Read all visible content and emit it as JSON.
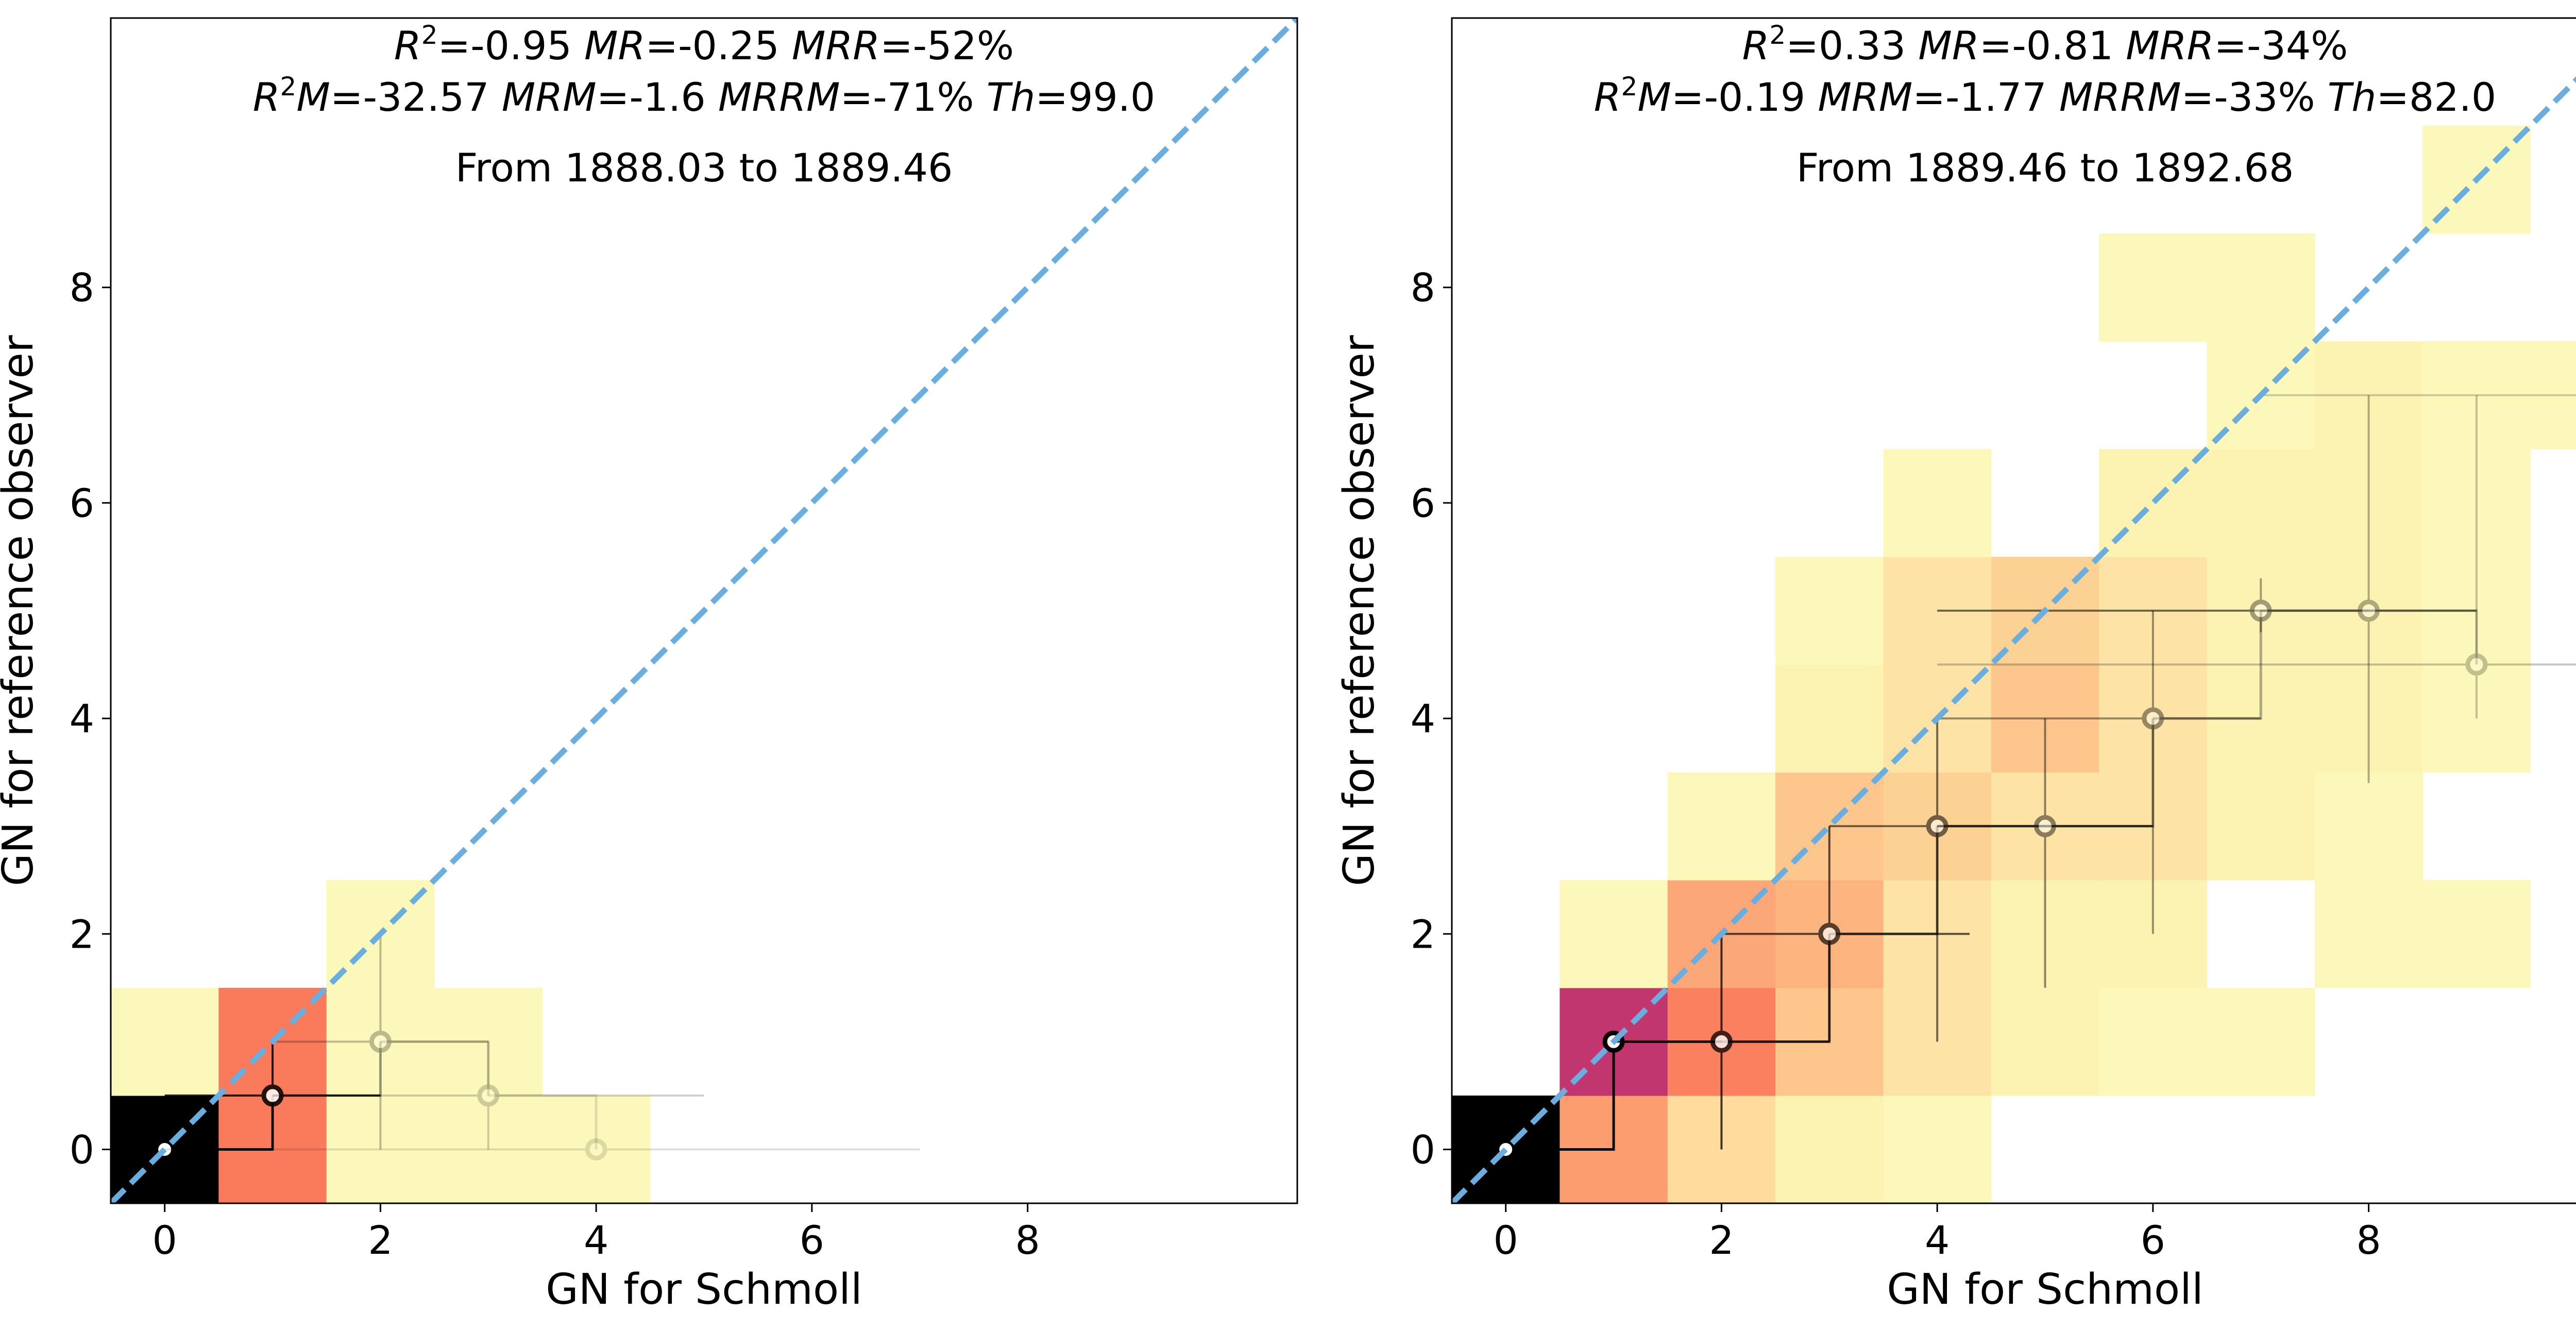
{
  "chart_data": [
    {
      "type": "heatmap",
      "title_line1": {
        "R2": "-0.95",
        "MR": "-0.25",
        "MRR": "-52%"
      },
      "title_line2": {
        "R2M": "-32.57",
        "MRM": "-1.6",
        "MRRM": "-71%",
        "Th": "99.0"
      },
      "range_text": "From 1888.03  to 1889.46",
      "xlabel": "GN for Schmoll",
      "ylabel": "GN for reference observer",
      "xlim": [
        -0.5,
        10.5
      ],
      "ylim": [
        -0.5,
        10.5
      ],
      "xticks": [
        "0",
        "2",
        "4",
        "6",
        "8"
      ],
      "yticks": [
        "0",
        "2",
        "4",
        "6",
        "8"
      ],
      "reference_line": "y = x (dashed, light blue)",
      "colors": {
        "reference_line": "#6aaee0"
      },
      "cells": [
        {
          "x": 0,
          "y": 0,
          "color": "#000000"
        },
        {
          "x": 1,
          "y": 0,
          "color": "#fa7b5c"
        },
        {
          "x": 2,
          "y": 0,
          "color": "#fcf8ba"
        },
        {
          "x": 3,
          "y": 0,
          "color": "#fcf8ba"
        },
        {
          "x": 4,
          "y": 0,
          "color": "#fcf8ba"
        },
        {
          "x": 0,
          "y": 1,
          "color": "#fcf8ba"
        },
        {
          "x": 1,
          "y": 1,
          "color": "#fa7b5c"
        },
        {
          "x": 2,
          "y": 1,
          "color": "#fcf8ba"
        },
        {
          "x": 3,
          "y": 1,
          "color": "#fcf8ba"
        },
        {
          "x": 2,
          "y": 2,
          "color": "#fcf8ba"
        }
      ],
      "median_points": [
        {
          "x": 0,
          "y": 0,
          "x_err": [
            0,
            1
          ],
          "y_err": [
            0,
            0
          ],
          "alpha": 1.0
        },
        {
          "x": 1,
          "y": 0.5,
          "x_err": [
            0,
            2
          ],
          "y_err": [
            0,
            1
          ],
          "alpha": 0.85
        },
        {
          "x": 2,
          "y": 1,
          "x_err": [
            1,
            3
          ],
          "y_err": [
            0,
            2
          ],
          "alpha": 0.25
        },
        {
          "x": 3,
          "y": 0.5,
          "x_err": [
            1,
            5
          ],
          "y_err": [
            0,
            1
          ],
          "alpha": 0.18
        },
        {
          "x": 4,
          "y": 0,
          "x_err": [
            0,
            7
          ],
          "y_err": [
            0,
            0
          ],
          "alpha": 0.12
        }
      ]
    },
    {
      "type": "heatmap",
      "title_line1": {
        "R2": "0.33",
        "MR": "-0.81",
        "MRR": "-34%"
      },
      "title_line2": {
        "R2M": "-0.19",
        "MRM": "-1.77",
        "MRRM": "-33%",
        "Th": "82.0"
      },
      "range_text": "From 1889.46  to 1892.68",
      "xlabel": "GN for Schmoll",
      "ylabel": "GN for reference observer",
      "xlim": [
        -0.5,
        10.5
      ],
      "ylim": [
        -0.5,
        10.5
      ],
      "xticks": [
        "0",
        "2",
        "4",
        "6",
        "8"
      ],
      "yticks": [
        "0",
        "2",
        "4",
        "6",
        "8"
      ],
      "reference_line": "y = x (dashed, light blue)",
      "colors": {
        "reference_line": "#6aaee0"
      },
      "cells": [
        {
          "x": 0,
          "y": 0,
          "color": "#000000"
        },
        {
          "x": 1,
          "y": 0,
          "color": "#fb9d6f"
        },
        {
          "x": 2,
          "y": 0,
          "color": "#fddc9e"
        },
        {
          "x": 3,
          "y": 0,
          "color": "#fcf2b2"
        },
        {
          "x": 4,
          "y": 0,
          "color": "#fcf8ba"
        },
        {
          "x": 1,
          "y": 1,
          "color": "#c1366f"
        },
        {
          "x": 2,
          "y": 1,
          "color": "#fa8060"
        },
        {
          "x": 3,
          "y": 1,
          "color": "#fcc68c"
        },
        {
          "x": 4,
          "y": 1,
          "color": "#fde4a6"
        },
        {
          "x": 5,
          "y": 1,
          "color": "#fcf2b2"
        },
        {
          "x": 6,
          "y": 1,
          "color": "#fcf8ba"
        },
        {
          "x": 7,
          "y": 1,
          "color": "#fcf8ba"
        },
        {
          "x": 1,
          "y": 2,
          "color": "#fcf8ba"
        },
        {
          "x": 2,
          "y": 2,
          "color": "#fba777"
        },
        {
          "x": 3,
          "y": 2,
          "color": "#fcb47f"
        },
        {
          "x": 4,
          "y": 2,
          "color": "#fde4a6"
        },
        {
          "x": 5,
          "y": 2,
          "color": "#fcf2b2"
        },
        {
          "x": 6,
          "y": 2,
          "color": "#fcf2b2"
        },
        {
          "x": 8,
          "y": 2,
          "color": "#fcf8ba"
        },
        {
          "x": 9,
          "y": 2,
          "color": "#fcf8ba"
        },
        {
          "x": 2,
          "y": 3,
          "color": "#fcf8ba"
        },
        {
          "x": 3,
          "y": 3,
          "color": "#fcc68c"
        },
        {
          "x": 4,
          "y": 3,
          "color": "#fcd294"
        },
        {
          "x": 5,
          "y": 3,
          "color": "#fde4a6"
        },
        {
          "x": 6,
          "y": 3,
          "color": "#fde4a6"
        },
        {
          "x": 7,
          "y": 3,
          "color": "#fcf2b2"
        },
        {
          "x": 8,
          "y": 3,
          "color": "#fcf8ba"
        },
        {
          "x": 3,
          "y": 4,
          "color": "#fcf2b2"
        },
        {
          "x": 4,
          "y": 4,
          "color": "#fde4a6"
        },
        {
          "x": 5,
          "y": 4,
          "color": "#fcc68c"
        },
        {
          "x": 6,
          "y": 4,
          "color": "#fde4a6"
        },
        {
          "x": 7,
          "y": 4,
          "color": "#fcf2b2"
        },
        {
          "x": 8,
          "y": 4,
          "color": "#fcf2b2"
        },
        {
          "x": 9,
          "y": 4,
          "color": "#fcf8ba"
        },
        {
          "x": 3,
          "y": 5,
          "color": "#fcf8ba"
        },
        {
          "x": 4,
          "y": 5,
          "color": "#fde4a6"
        },
        {
          "x": 5,
          "y": 5,
          "color": "#fcd294"
        },
        {
          "x": 6,
          "y": 5,
          "color": "#fde4a6"
        },
        {
          "x": 7,
          "y": 5,
          "color": "#fcf2b2"
        },
        {
          "x": 8,
          "y": 5,
          "color": "#fcf2b2"
        },
        {
          "x": 9,
          "y": 5,
          "color": "#fcf8ba"
        },
        {
          "x": 4,
          "y": 6,
          "color": "#fcf8ba"
        },
        {
          "x": 6,
          "y": 6,
          "color": "#fcf2b2"
        },
        {
          "x": 7,
          "y": 6,
          "color": "#fcf2b2"
        },
        {
          "x": 8,
          "y": 6,
          "color": "#fcf2b2"
        },
        {
          "x": 9,
          "y": 6,
          "color": "#fcf8ba"
        },
        {
          "x": 7,
          "y": 7,
          "color": "#fcf8ba"
        },
        {
          "x": 8,
          "y": 7,
          "color": "#fcf2b2"
        },
        {
          "x": 9,
          "y": 7,
          "color": "#fcf8ba"
        },
        {
          "x": 10,
          "y": 7,
          "color": "#fcf8ba"
        },
        {
          "x": 6,
          "y": 8,
          "color": "#fcf8ba"
        },
        {
          "x": 7,
          "y": 8,
          "color": "#fcf8ba"
        },
        {
          "x": 9,
          "y": 9,
          "color": "#fcf8ba"
        }
      ],
      "median_points": [
        {
          "x": 0,
          "y": 0,
          "x_err": [
            0,
            1
          ],
          "y_err": [
            0,
            0
          ],
          "alpha": 1.0
        },
        {
          "x": 1,
          "y": 1,
          "x_err": [
            1,
            2
          ],
          "y_err": [
            0,
            1
          ],
          "alpha": 0.95
        },
        {
          "x": 2,
          "y": 1,
          "x_err": [
            1,
            3
          ],
          "y_err": [
            0,
            2
          ],
          "alpha": 0.75
        },
        {
          "x": 3,
          "y": 2,
          "x_err": [
            2,
            4.3
          ],
          "y_err": [
            1,
            3
          ],
          "alpha": 0.65
        },
        {
          "x": 4,
          "y": 3,
          "x_err": [
            3,
            6
          ],
          "y_err": [
            1,
            4
          ],
          "alpha": 0.55
        },
        {
          "x": 5,
          "y": 3,
          "x_err": [
            4,
            6
          ],
          "y_err": [
            1.5,
            4
          ],
          "alpha": 0.45
        },
        {
          "x": 6,
          "y": 4,
          "x_err": [
            4,
            7
          ],
          "y_err": [
            2,
            5
          ],
          "alpha": 0.4
        },
        {
          "x": 7,
          "y": 5,
          "x_err": [
            4,
            9
          ],
          "y_err": [
            4.8,
            5.3
          ],
          "alpha": 0.35
        },
        {
          "x": 8,
          "y": 5,
          "x_err": [
            4,
            9
          ],
          "y_err": [
            3.4,
            7
          ],
          "alpha": 0.3
        },
        {
          "x": 9,
          "y": 4.5,
          "x_err": [
            4,
            11
          ],
          "y_err": [
            4,
            7
          ],
          "alpha": 0.22
        },
        {
          "x": 11,
          "y": 7,
          "x_err": [
            7,
            11
          ],
          "y_err": [
            7,
            7
          ],
          "alpha": 0.18
        }
      ]
    }
  ]
}
